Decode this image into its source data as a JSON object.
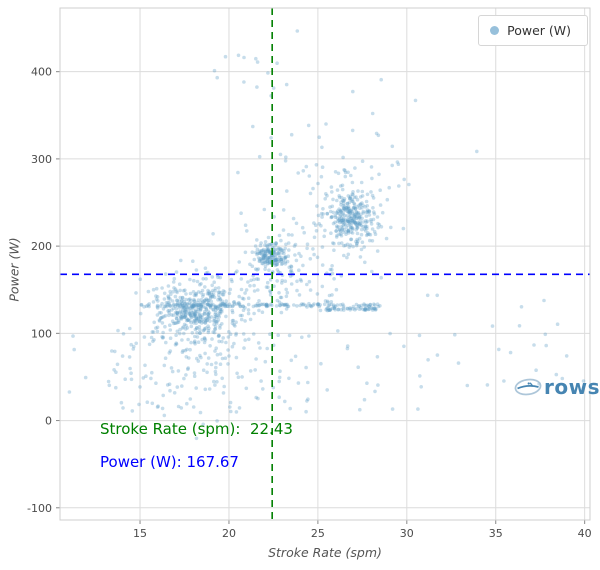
{
  "chart_data": {
    "type": "scatter",
    "title": "",
    "xlabel": "Stroke Rate (spm)",
    "ylabel": "Power (W)",
    "xlim": [
      10.5,
      40.3
    ],
    "ylim": [
      -114,
      473
    ],
    "x_ticks": [
      15,
      20,
      25,
      30,
      35,
      40
    ],
    "y_ticks": [
      -100,
      0,
      100,
      200,
      300,
      400
    ],
    "grid": true,
    "legend": {
      "label": "Power (W)",
      "position": "top-right"
    },
    "series_name": "Power (W)",
    "vline": {
      "axis": "x",
      "value": 22.43,
      "style": "dashed",
      "color": "#008000"
    },
    "hline": {
      "axis": "y",
      "value": 167.67,
      "style": "dashed",
      "color": "#0000ff"
    },
    "annotations": [
      {
        "text": "Stroke Rate (spm):  22.43",
        "color": "#008000"
      },
      {
        "text": "Power (W): 167.67",
        "color": "#0000ff"
      }
    ],
    "colors": {
      "point": "#5f9ec7",
      "point_opacity": 0.35,
      "grid": "#dcdcdc",
      "frame": "#cfcfcf",
      "tick": "#888888"
    },
    "seed": 7,
    "point_clusters": [
      {
        "kind": "gauss",
        "n": 380,
        "x": 18.2,
        "y": 128,
        "sx": 1.05,
        "sy": 17
      },
      {
        "kind": "gauss",
        "n": 130,
        "x": 18.0,
        "y": 100,
        "sx": 1.8,
        "sy": 38
      },
      {
        "kind": "gauss",
        "n": 60,
        "x": 17.6,
        "y": 55,
        "sx": 2.2,
        "sy": 28
      },
      {
        "kind": "gauss",
        "n": 150,
        "x": 22.4,
        "y": 190,
        "sx": 0.45,
        "sy": 7
      },
      {
        "kind": "gauss",
        "n": 70,
        "x": 22.6,
        "y": 186,
        "sx": 1.1,
        "sy": 22
      },
      {
        "kind": "gauss",
        "n": 270,
        "x": 26.9,
        "y": 233,
        "sx": 0.65,
        "sy": 15
      },
      {
        "kind": "gauss",
        "n": 90,
        "x": 26.7,
        "y": 243,
        "sx": 1.4,
        "sy": 38
      },
      {
        "kind": "uniform",
        "n": 140,
        "x0": 15.0,
        "x1": 28.5,
        "y0": 130.5,
        "y1": 134
      },
      {
        "kind": "uniform",
        "n": 45,
        "x0": 25.4,
        "x1": 28.3,
        "y0": 126.5,
        "y1": 129.5
      },
      {
        "kind": "uniform",
        "n": 70,
        "x0": 20.0,
        "x1": 26.0,
        "y0": 120,
        "y1": 180
      },
      {
        "kind": "uniform",
        "n": 80,
        "x0": 11.0,
        "x1": 31.0,
        "y0": 10,
        "y1": 105
      },
      {
        "kind": "gauss",
        "n": 35,
        "x": 25.5,
        "y": 330,
        "sx": 3.0,
        "sy": 55
      },
      {
        "kind": "uniform",
        "n": 25,
        "x0": 30.0,
        "x1": 40.0,
        "y0": 40,
        "y1": 145
      },
      {
        "kind": "uniform",
        "n": 12,
        "x0": 19.0,
        "x1": 23.0,
        "y0": 370,
        "y1": 420
      }
    ]
  },
  "watermark": {
    "text": "rows",
    "color": "#3d7fae"
  }
}
